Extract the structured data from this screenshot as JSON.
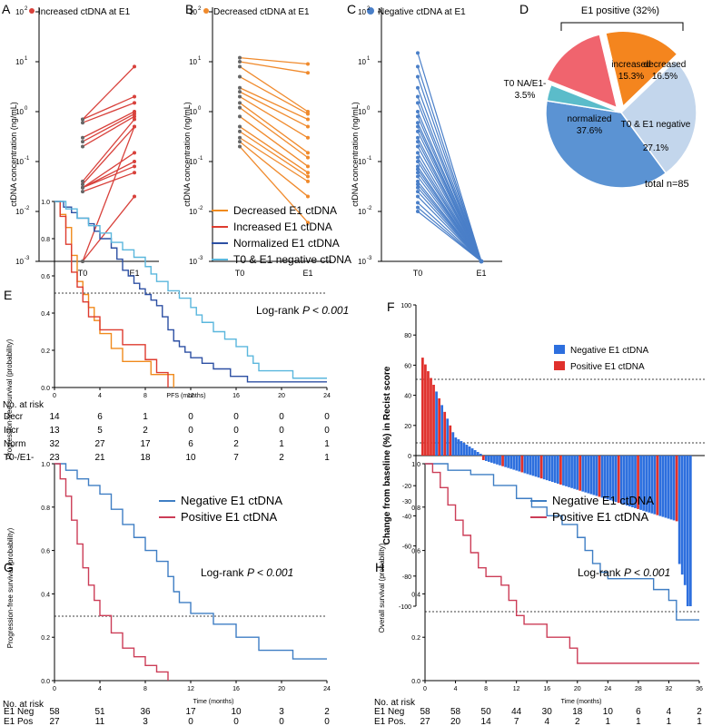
{
  "panels_top": [
    {
      "letter": "A",
      "legend": "Increased ctDNA at E1",
      "color": "#d8413b",
      "ylabel": "ctDNA concentration (ng/mL)",
      "xticks": [
        "T0",
        "E1"
      ]
    },
    {
      "letter": "B",
      "legend": "Decreased ctDNA at E1",
      "color": "#f08a2c",
      "ylabel": "ctDNA concentration (ng/mL)",
      "xticks": [
        "T0",
        "E1"
      ]
    },
    {
      "letter": "C",
      "legend": "Negative ctDNA at E1",
      "color": "#4a7fc8",
      "ylabel": "ctDNA concentration (ng/mL)",
      "xticks": [
        "T0",
        "E1"
      ]
    }
  ],
  "yticks_log": [
    {
      "exp": "-3",
      "label": "10"
    },
    {
      "exp": "-2",
      "label": "10"
    },
    {
      "exp": "-1",
      "label": "10"
    },
    {
      "exp": "0",
      "label": "10"
    },
    {
      "exp": "1",
      "label": "10"
    },
    {
      "exp": "2",
      "label": "10"
    }
  ],
  "pie": {
    "letter": "D",
    "title": "E1 positive (32%)",
    "total": "total n=85",
    "slices": [
      {
        "name": "increased",
        "pct": "15.3%",
        "value": 15.3,
        "color": "#f0646e"
      },
      {
        "name": "decreased",
        "pct": "16.5%",
        "value": 16.5,
        "color": "#f4851e"
      },
      {
        "name": "T0 & E1 negative",
        "pct": "27.1%",
        "value": 27.1,
        "color": "#c3d6ec"
      },
      {
        "name": "normalized",
        "pct": "37.6%",
        "value": 37.6,
        "color": "#5b93d3"
      },
      {
        "name": "T0 NA/E1-",
        "pct": "3.5%",
        "value": 3.5,
        "color": "#5bbcca"
      }
    ]
  },
  "panelE": {
    "letter": "E",
    "ylabel": "Progression-free survival (probability)",
    "xlabel": "PFS (months)",
    "logrank": "Log-rank",
    "pval": "P < 0.001",
    "legend": [
      {
        "name": "Decreased E1 ctDNA",
        "color": "#f08a1c"
      },
      {
        "name": "Increased E1 ctDNA",
        "color": "#de3b2f"
      },
      {
        "name": "Normalized E1 ctDNA",
        "color": "#2c4fa3"
      },
      {
        "name": "T0 & E1 negative ctDNA",
        "color": "#5ab7dd"
      }
    ],
    "risk_title": "No. at risk",
    "risk": [
      {
        "label": "Decr",
        "values": [
          "14",
          "6",
          "1",
          "0",
          "0",
          "0",
          "0"
        ]
      },
      {
        "label": "Incr",
        "values": [
          "13",
          "5",
          "2",
          "0",
          "0",
          "0",
          "0"
        ]
      },
      {
        "label": "Norm",
        "values": [
          "32",
          "27",
          "17",
          "6",
          "2",
          "1",
          "1"
        ]
      },
      {
        "label": "T0-/E1-",
        "values": [
          "23",
          "21",
          "18",
          "10",
          "7",
          "2",
          "1"
        ]
      }
    ]
  },
  "panelF": {
    "letter": "F",
    "ylabel": "Change from baseline (%) in Recist score",
    "legend": [
      {
        "name": "Negative E1 ctDNA",
        "color": "#2d6fde"
      },
      {
        "name": "Positive E1 ctDNA",
        "color": "#e0302c"
      }
    ]
  },
  "panelG": {
    "letter": "G",
    "ylabel": "Progression-free survival (probability)",
    "xlabel": "Time (months)",
    "logrank": "Log-rank",
    "pval": "P < 0.001",
    "legend": [
      {
        "name": "Negative E1 ctDNA",
        "color": "#3f7ec4"
      },
      {
        "name": "Positive E1 ctDNA",
        "color": "#cc3d57"
      }
    ],
    "risk_title": "No. at risk",
    "risk": [
      {
        "label": "E1 Neg",
        "values": [
          "58",
          "51",
          "36",
          "17",
          "10",
          "3",
          "2"
        ]
      },
      {
        "label": "E1 Pos",
        "values": [
          "27",
          "11",
          "3",
          "0",
          "0",
          "0",
          "0"
        ]
      }
    ]
  },
  "panelH": {
    "letter": "H",
    "ylabel": "Overall survival (probability)",
    "xlabel": "Time (months)",
    "logrank": "Log-rank",
    "pval": "P < 0.001",
    "legend": [
      {
        "name": "Negative E1 ctDNA",
        "color": "#3f7ec4"
      },
      {
        "name": "Positive E1 ctDNA",
        "color": "#cc3d57"
      }
    ],
    "risk_title": "No. at risk",
    "risk": [
      {
        "label": "E1 Neg",
        "values": [
          "58",
          "58",
          "50",
          "44",
          "30",
          "18",
          "10",
          "6",
          "4",
          "2"
        ]
      },
      {
        "label": "E1 Pos.",
        "values": [
          "27",
          "20",
          "14",
          "7",
          "4",
          "2",
          "1",
          "1",
          "1",
          "1"
        ]
      }
    ]
  },
  "chart_data": [
    {
      "type": "line",
      "panel": "A",
      "title": "Increased ctDNA at E1",
      "ylabel": "ctDNA concentration (ng/mL)",
      "x": [
        "T0",
        "E1"
      ],
      "yscale": "log",
      "ylim": [
        0.001,
        100
      ],
      "pairs": [
        [
          0.7,
          8
        ],
        [
          0.7,
          2
        ],
        [
          0.6,
          1.5
        ],
        [
          0.3,
          1
        ],
        [
          0.25,
          0.9
        ],
        [
          0.2,
          0.8
        ],
        [
          0.04,
          0.7
        ],
        [
          0.035,
          0.5
        ],
        [
          0.03,
          0.15
        ],
        [
          0.03,
          0.1
        ],
        [
          0.03,
          0.08
        ],
        [
          0.025,
          0.06
        ],
        [
          0.001,
          0.5
        ],
        [
          0.001,
          0.02
        ]
      ]
    },
    {
      "type": "line",
      "panel": "B",
      "title": "Decreased ctDNA at E1",
      "ylabel": "ctDNA concentration (ng/mL)",
      "x": [
        "T0",
        "E1"
      ],
      "yscale": "log",
      "ylim": [
        0.001,
        100
      ],
      "pairs": [
        [
          12,
          9
        ],
        [
          10,
          6
        ],
        [
          8,
          1
        ],
        [
          5,
          0.9
        ],
        [
          3,
          0.7
        ],
        [
          2.5,
          0.5
        ],
        [
          2,
          0.3
        ],
        [
          1.5,
          0.15
        ],
        [
          1.2,
          0.12
        ],
        [
          0.8,
          0.08
        ],
        [
          0.5,
          0.06
        ],
        [
          0.4,
          0.05
        ],
        [
          0.3,
          0.04
        ],
        [
          0.25,
          0.02
        ],
        [
          0.2,
          0.006
        ]
      ]
    },
    {
      "type": "line",
      "panel": "C",
      "title": "Negative ctDNA at E1",
      "ylabel": "ctDNA concentration (ng/mL)",
      "x": [
        "T0",
        "E1"
      ],
      "yscale": "log",
      "ylim": [
        0.001,
        100
      ],
      "t0": [
        15,
        8,
        5,
        3,
        2,
        1.5,
        1,
        0.8,
        0.6,
        0.5,
        0.4,
        0.3,
        0.25,
        0.2,
        0.15,
        0.12,
        0.1,
        0.08,
        0.07,
        0.06,
        0.05,
        0.04,
        0.035,
        0.03,
        0.025,
        0.02,
        0.015,
        0.012,
        0.01
      ],
      "e1": 0.001
    },
    {
      "type": "pie",
      "panel": "D",
      "title": "E1 positive (32%)",
      "total": "total n=85",
      "slices": [
        {
          "label": "increased",
          "value": 15.3
        },
        {
          "label": "decreased",
          "value": 16.5
        },
        {
          "label": "T0 & E1 negative",
          "value": 27.1
        },
        {
          "label": "normalized",
          "value": 37.6
        },
        {
          "label": "T0 NA/E1-",
          "value": 3.5
        }
      ]
    },
    {
      "type": "line",
      "panel": "E",
      "subtype": "kaplan-meier",
      "ylabel": "Progression-free survival (probability)",
      "xlabel": "PFS (months)",
      "xlim": [
        0,
        24
      ],
      "ylim": [
        0,
        1
      ],
      "series": [
        {
          "name": "Decreased E1 ctDNA",
          "points": [
            [
              0,
              1
            ],
            [
              0.5,
              0.93
            ],
            [
              1,
              0.86
            ],
            [
              1.5,
              0.71
            ],
            [
              2,
              0.57
            ],
            [
              2.5,
              0.5
            ],
            [
              3,
              0.43
            ],
            [
              3.5,
              0.36
            ],
            [
              4,
              0.29
            ],
            [
              5,
              0.21
            ],
            [
              6,
              0.14
            ],
            [
              8.5,
              0.07
            ],
            [
              10.5,
              0
            ]
          ]
        },
        {
          "name": "Increased E1 ctDNA",
          "points": [
            [
              0,
              1
            ],
            [
              0.5,
              0.92
            ],
            [
              1,
              0.77
            ],
            [
              1.5,
              0.62
            ],
            [
              2,
              0.54
            ],
            [
              2.5,
              0.46
            ],
            [
              3,
              0.38
            ],
            [
              4,
              0.31
            ],
            [
              6,
              0.23
            ],
            [
              8,
              0.15
            ],
            [
              9,
              0.08
            ],
            [
              10,
              0
            ]
          ]
        },
        {
          "name": "Normalized E1 ctDNA",
          "points": [
            [
              0,
              1
            ],
            [
              0.8,
              0.97
            ],
            [
              1.5,
              0.94
            ],
            [
              2,
              0.91
            ],
            [
              3,
              0.88
            ],
            [
              3.5,
              0.84
            ],
            [
              4,
              0.8
            ],
            [
              5,
              0.75
            ],
            [
              5.5,
              0.69
            ],
            [
              6,
              0.63
            ],
            [
              6.5,
              0.6
            ],
            [
              7,
              0.56
            ],
            [
              7.5,
              0.53
            ],
            [
              8,
              0.5
            ],
            [
              8.5,
              0.47
            ],
            [
              9,
              0.44
            ],
            [
              9.5,
              0.38
            ],
            [
              10,
              0.31
            ],
            [
              10.5,
              0.25
            ],
            [
              11,
              0.22
            ],
            [
              11.5,
              0.19
            ],
            [
              12,
              0.16
            ],
            [
              13,
              0.13
            ],
            [
              14,
              0.1
            ],
            [
              15.5,
              0.06
            ],
            [
              17,
              0.03
            ],
            [
              24,
              0.03
            ]
          ]
        },
        {
          "name": "T0 & E1 negative ctDNA",
          "points": [
            [
              0,
              1
            ],
            [
              1,
              0.96
            ],
            [
              2,
              0.91
            ],
            [
              3,
              0.87
            ],
            [
              4,
              0.83
            ],
            [
              5,
              0.78
            ],
            [
              6,
              0.74
            ],
            [
              7,
              0.7
            ],
            [
              8,
              0.65
            ],
            [
              8.5,
              0.61
            ],
            [
              9,
              0.57
            ],
            [
              10,
              0.52
            ],
            [
              11,
              0.48
            ],
            [
              12,
              0.43
            ],
            [
              12.5,
              0.39
            ],
            [
              13,
              0.35
            ],
            [
              14,
              0.3
            ],
            [
              15,
              0.26
            ],
            [
              16,
              0.22
            ],
            [
              17,
              0.17
            ],
            [
              17.5,
              0.13
            ],
            [
              18,
              0.09
            ],
            [
              21,
              0.05
            ],
            [
              24,
              0.05
            ]
          ]
        }
      ]
    },
    {
      "type": "bar",
      "panel": "F",
      "subtype": "waterfall",
      "ylabel": "Change from baseline (%) in Recist score",
      "ylim": [
        -100,
        100
      ],
      "series": [
        {
          "name": "Negative E1 ctDNA"
        },
        {
          "name": "Positive E1 ctDNA"
        }
      ]
    },
    {
      "type": "line",
      "panel": "G",
      "subtype": "kaplan-meier",
      "ylabel": "Progression-free survival (probability)",
      "xlabel": "Time (months)",
      "xlim": [
        0,
        24
      ],
      "ylim": [
        0,
        1
      ],
      "series": [
        {
          "name": "Negative E1 ctDNA",
          "points": [
            [
              0,
              1
            ],
            [
              1,
              0.97
            ],
            [
              2,
              0.93
            ],
            [
              3,
              0.9
            ],
            [
              4,
              0.86
            ],
            [
              5,
              0.79
            ],
            [
              6,
              0.72
            ],
            [
              7,
              0.66
            ],
            [
              8,
              0.6
            ],
            [
              9,
              0.55
            ],
            [
              10,
              0.48
            ],
            [
              10.5,
              0.41
            ],
            [
              11,
              0.36
            ],
            [
              12,
              0.31
            ],
            [
              14,
              0.26
            ],
            [
              16,
              0.2
            ],
            [
              18,
              0.14
            ],
            [
              21,
              0.1
            ],
            [
              24,
              0.1
            ]
          ]
        },
        {
          "name": "Positive E1 ctDNA",
          "points": [
            [
              0,
              1
            ],
            [
              0.5,
              0.93
            ],
            [
              1,
              0.85
            ],
            [
              1.5,
              0.74
            ],
            [
              2,
              0.63
            ],
            [
              2.5,
              0.52
            ],
            [
              3,
              0.44
            ],
            [
              3.5,
              0.37
            ],
            [
              4,
              0.3
            ],
            [
              5,
              0.22
            ],
            [
              6,
              0.15
            ],
            [
              7,
              0.11
            ],
            [
              8,
              0.07
            ],
            [
              9,
              0.04
            ],
            [
              10,
              0
            ]
          ]
        }
      ]
    },
    {
      "type": "line",
      "panel": "H",
      "subtype": "kaplan-meier",
      "ylabel": "Overall survival (probability)",
      "xlabel": "Time (months)",
      "xlim": [
        0,
        36
      ],
      "ylim": [
        0,
        1
      ],
      "series": [
        {
          "name": "Negative E1 ctDNA",
          "points": [
            [
              0,
              1
            ],
            [
              3,
              0.97
            ],
            [
              6,
              0.95
            ],
            [
              9,
              0.9
            ],
            [
              12,
              0.84
            ],
            [
              14,
              0.8
            ],
            [
              16,
              0.76
            ],
            [
              18,
              0.72
            ],
            [
              20,
              0.66
            ],
            [
              21,
              0.6
            ],
            [
              22,
              0.54
            ],
            [
              23,
              0.5
            ],
            [
              24,
              0.47
            ],
            [
              30,
              0.42
            ],
            [
              32,
              0.37
            ],
            [
              33,
              0.28
            ],
            [
              36,
              0.28
            ]
          ]
        },
        {
          "name": "Positive E1 ctDNA",
          "points": [
            [
              0,
              1
            ],
            [
              1,
              0.96
            ],
            [
              2,
              0.89
            ],
            [
              3,
              0.81
            ],
            [
              4,
              0.74
            ],
            [
              5,
              0.67
            ],
            [
              6,
              0.59
            ],
            [
              7,
              0.52
            ],
            [
              8,
              0.48
            ],
            [
              10,
              0.44
            ],
            [
              11,
              0.37
            ],
            [
              12,
              0.3
            ],
            [
              13,
              0.26
            ],
            [
              16,
              0.2
            ],
            [
              19,
              0.15
            ],
            [
              20,
              0.08
            ],
            [
              36,
              0.08
            ]
          ]
        }
      ]
    }
  ]
}
